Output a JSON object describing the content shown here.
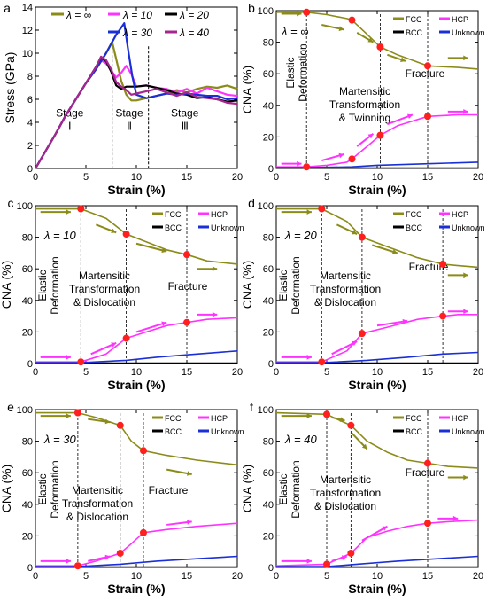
{
  "colors": {
    "fcc": "#8b8b1a",
    "hcp": "#ff33ff",
    "bcc": "#000000",
    "unknown": "#1a2fd6",
    "marker": "#ff1f1f",
    "inf": "#8b8b1a",
    "l10": "#ff33ff",
    "l20": "#000000",
    "l30": "#1a2fd6",
    "l40": "#a5268f"
  },
  "chart_data": [
    {
      "panel": "a",
      "type": "line",
      "xlabel": "Strain (%)",
      "ylabel": "Stress (GPa)",
      "xlim": [
        0,
        20
      ],
      "ylim": [
        0,
        14
      ],
      "xticks": [
        "0",
        "5",
        "10",
        "15",
        "20"
      ],
      "yticks": [
        "0",
        "2",
        "4",
        "6",
        "8",
        "10",
        "12",
        "14"
      ],
      "legend": [
        "λ = ∞",
        "λ = 10",
        "λ = 20",
        "λ = 30",
        "λ = 40"
      ],
      "stages": [
        "Stage\nⅠ",
        "Stage\nⅡ",
        "Stage\nⅢ"
      ],
      "series": [
        {
          "name": "λ = ∞",
          "color": "inf",
          "x": [
            0,
            1,
            2,
            3,
            4,
            5,
            6,
            7,
            7.6,
            8,
            8.5,
            9,
            9.5,
            10,
            11,
            12,
            13,
            14,
            15,
            16,
            17,
            18,
            19,
            20
          ],
          "y": [
            0,
            1.5,
            3,
            4.6,
            6,
            7.4,
            8.6,
            10,
            11,
            9.5,
            7.6,
            6.4,
            5.9,
            5.9,
            6.1,
            6.3,
            6.5,
            6.8,
            6.6,
            6.9,
            7.1,
            7,
            7.2,
            6.9
          ]
        },
        {
          "name": "λ = 10",
          "color": "l10",
          "x": [
            0,
            1,
            2,
            3,
            4,
            5,
            6,
            6.5,
            7,
            7.5,
            8,
            8.5,
            9,
            9.5,
            10,
            11,
            12,
            13,
            14,
            15,
            16,
            17,
            18,
            19,
            20
          ],
          "y": [
            0,
            1.5,
            3,
            4.6,
            6,
            7.4,
            8.8,
            9.4,
            9.1,
            8.5,
            7.9,
            8.3,
            8.9,
            8.2,
            7.1,
            7.2,
            7,
            6.9,
            6.6,
            6.9,
            6.5,
            7,
            6.7,
            6.4,
            6.3
          ]
        },
        {
          "name": "λ = 20",
          "color": "l20",
          "x": [
            0,
            1,
            2,
            3,
            4,
            5,
            6,
            6.5,
            7,
            7.5,
            8,
            8.5,
            9,
            10,
            11,
            12,
            13,
            14,
            15,
            16,
            17,
            18,
            19,
            20
          ],
          "y": [
            0,
            1.5,
            3,
            4.6,
            6,
            7.4,
            8.8,
            9.6,
            9.3,
            8.4,
            7.2,
            6.9,
            7.1,
            7.1,
            7.2,
            7,
            6.8,
            6.5,
            6.4,
            6.1,
            6.2,
            6,
            5.8,
            5.9
          ]
        },
        {
          "name": "λ = 30",
          "color": "l30",
          "x": [
            0,
            1,
            2,
            3,
            4,
            5,
            6,
            7,
            8,
            8.8,
            9.2,
            9.6,
            10,
            11,
            12,
            13,
            14,
            15,
            16,
            17,
            18,
            19,
            20
          ],
          "y": [
            0,
            1.5,
            3,
            4.6,
            6,
            7.4,
            8.6,
            10,
            11.6,
            12.6,
            10.2,
            8,
            6.4,
            6.1,
            6.3,
            6.5,
            6.4,
            6.5,
            6.4,
            6.3,
            6.3,
            6,
            6.1
          ]
        },
        {
          "name": "λ = 40",
          "color": "l40",
          "x": [
            0,
            1,
            2,
            3,
            4,
            5,
            6,
            6.5,
            7,
            7.5,
            8,
            8.5,
            9,
            9.5,
            10,
            11,
            12,
            13,
            14,
            15,
            16,
            17,
            18,
            19,
            20
          ],
          "y": [
            0,
            1.5,
            3,
            4.6,
            6,
            7.4,
            8.8,
            9.7,
            9.4,
            8.6,
            7.5,
            7.1,
            6.8,
            6.4,
            6.5,
            6.7,
            6.9,
            6.6,
            6.3,
            6.6,
            6.2,
            6.1,
            6,
            5.7,
            5.6
          ]
        }
      ]
    },
    {
      "panel": "b",
      "type": "line",
      "xlabel": "Strain (%)",
      "ylabel": "CNA (%)",
      "xlim": [
        0,
        20
      ],
      "ylim": [
        0,
        100
      ],
      "xticks": [
        "0",
        "5",
        "10",
        "15",
        "20"
      ],
      "yticks": [
        "0",
        "20",
        "40",
        "60",
        "80",
        "100"
      ],
      "legend": [
        "FCC",
        "HCP",
        "BCC",
        "Unknown"
      ],
      "lambda": "λ = ∞",
      "annotations": [
        "Elastic\nDeformation",
        "Martensitic\nTransformation\n& Twinning",
        "Fracture"
      ],
      "series": [
        {
          "name": "FCC",
          "color": "fcc",
          "x": [
            0,
            3,
            5,
            7,
            7.5,
            9,
            10.3,
            12,
            15,
            18,
            20
          ],
          "y": [
            99,
            99,
            97.5,
            95,
            94,
            85,
            77,
            72,
            65,
            64,
            63
          ]
        },
        {
          "name": "HCP",
          "color": "hcp",
          "x": [
            0,
            3,
            5,
            7,
            7.5,
            9,
            10.3,
            12,
            15,
            18,
            20
          ],
          "y": [
            1,
            1,
            2,
            4,
            6,
            14,
            21,
            27,
            33,
            34,
            34
          ]
        },
        {
          "name": "BCC",
          "color": "bcc",
          "x": [
            0,
            20
          ],
          "y": [
            0.2,
            0.2
          ]
        },
        {
          "name": "Unknown",
          "color": "unknown",
          "x": [
            0,
            3,
            7.5,
            10,
            15,
            20
          ],
          "y": [
            0.5,
            0.5,
            1,
            2,
            3,
            4
          ]
        }
      ],
      "markers": [
        [
          3,
          99
        ],
        [
          3,
          1
        ],
        [
          7.5,
          94
        ],
        [
          7.5,
          6
        ],
        [
          10.3,
          77
        ],
        [
          10.3,
          21
        ],
        [
          15,
          65
        ],
        [
          15,
          33
        ]
      ]
    },
    {
      "panel": "c",
      "type": "line",
      "xlabel": "Strain (%)",
      "ylabel": "CNA (%)",
      "xlim": [
        0,
        20
      ],
      "ylim": [
        0,
        100
      ],
      "xticks": [
        "0",
        "5",
        "10",
        "15",
        "20"
      ],
      "yticks": [
        "0",
        "20",
        "40",
        "60",
        "80",
        "100"
      ],
      "legend": [
        "FCC",
        "HCP",
        "BCC",
        "Unknown"
      ],
      "lambda": "λ = 10",
      "annotations": [
        "Elastic\nDeformation",
        "Martensitic\nTransformation\n& Dislocation",
        "Fracture"
      ],
      "series": [
        {
          "name": "FCC",
          "color": "fcc",
          "x": [
            0,
            4.5,
            7,
            9,
            11,
            13,
            15,
            17,
            20
          ],
          "y": [
            98,
            98,
            92,
            82,
            77,
            72,
            69,
            65,
            63
          ]
        },
        {
          "name": "HCP",
          "color": "hcp",
          "x": [
            0,
            4.5,
            7,
            9,
            11,
            13,
            15,
            17,
            20
          ],
          "y": [
            1,
            1,
            6,
            16,
            20,
            24,
            26,
            28,
            29
          ]
        },
        {
          "name": "BCC",
          "color": "bcc",
          "x": [
            0,
            20
          ],
          "y": [
            0.2,
            0.2
          ]
        },
        {
          "name": "Unknown",
          "color": "unknown",
          "x": [
            0,
            4.5,
            9,
            12,
            15,
            20
          ],
          "y": [
            0.5,
            0.5,
            2,
            4,
            5.5,
            8
          ]
        }
      ],
      "markers": [
        [
          4.5,
          98
        ],
        [
          4.5,
          1
        ],
        [
          9,
          82
        ],
        [
          9,
          16
        ],
        [
          15,
          69
        ],
        [
          15,
          26
        ]
      ]
    },
    {
      "panel": "d",
      "type": "line",
      "xlabel": "Strain (%)",
      "ylabel": "CNA (%)",
      "xlim": [
        0,
        20
      ],
      "ylim": [
        0,
        100
      ],
      "xticks": [
        "0",
        "5",
        "10",
        "15",
        "20"
      ],
      "yticks": [
        "0",
        "20",
        "40",
        "60",
        "80",
        "100"
      ],
      "legend": [
        "FCC",
        "HCP",
        "BCC",
        "Unknown"
      ],
      "lambda": "λ = 20",
      "annotations": [
        "Elastic\nDeformation",
        "Martensitic\nTransformation\n& Dislocation",
        "Fracture"
      ],
      "series": [
        {
          "name": "FCC",
          "color": "fcc",
          "x": [
            0,
            4.5,
            7,
            8.5,
            11,
            14,
            16.5,
            18,
            20
          ],
          "y": [
            98,
            98,
            90,
            80,
            74,
            67,
            63,
            62,
            61
          ]
        },
        {
          "name": "HCP",
          "color": "hcp",
          "x": [
            0,
            4.5,
            7,
            8.5,
            11,
            14,
            16.5,
            18,
            20
          ],
          "y": [
            1,
            1,
            8,
            19,
            23,
            28,
            30,
            31,
            31
          ]
        },
        {
          "name": "BCC",
          "color": "bcc",
          "x": [
            0,
            20
          ],
          "y": [
            0.2,
            0.2
          ]
        },
        {
          "name": "Unknown",
          "color": "unknown",
          "x": [
            0,
            4.5,
            9,
            13,
            16.5,
            20
          ],
          "y": [
            0.5,
            0.5,
            2,
            4,
            6,
            7
          ]
        }
      ],
      "markers": [
        [
          4.5,
          98
        ],
        [
          4.5,
          1
        ],
        [
          8.5,
          80
        ],
        [
          8.5,
          19
        ],
        [
          16.5,
          63
        ],
        [
          16.5,
          30
        ]
      ]
    },
    {
      "panel": "e",
      "type": "line",
      "xlabel": "Strain (%)",
      "ylabel": "CNA (%)",
      "xlim": [
        0,
        20
      ],
      "ylim": [
        0,
        100
      ],
      "xticks": [
        "0",
        "5",
        "10",
        "15",
        "20"
      ],
      "yticks": [
        "0",
        "20",
        "40",
        "60",
        "80",
        "100"
      ],
      "legend": [
        "FCC",
        "HCP",
        "BCC",
        "Unknown"
      ],
      "lambda": "λ = 30",
      "annotations": [
        "Elastic\nDeformation",
        "Martensitic\nTransformation\n& Dislocation",
        "Fracture"
      ],
      "series": [
        {
          "name": "FCC",
          "color": "fcc",
          "x": [
            0,
            4.2,
            6,
            8.4,
            9.5,
            10.7,
            13,
            16,
            20
          ],
          "y": [
            98,
            98,
            95,
            90,
            80,
            74,
            71,
            68,
            65
          ]
        },
        {
          "name": "HCP",
          "color": "hcp",
          "x": [
            0,
            4.2,
            6,
            8.4,
            9.5,
            10.7,
            13,
            16,
            20
          ],
          "y": [
            1,
            1,
            4,
            9,
            15,
            22,
            24,
            26,
            28
          ]
        },
        {
          "name": "BCC",
          "color": "bcc",
          "x": [
            0,
            20
          ],
          "y": [
            0.2,
            0.2
          ]
        },
        {
          "name": "Unknown",
          "color": "unknown",
          "x": [
            0,
            4.2,
            8.4,
            12,
            16,
            20
          ],
          "y": [
            0.5,
            0.5,
            2,
            4,
            5.5,
            7
          ]
        }
      ],
      "markers": [
        [
          4.2,
          98
        ],
        [
          4.2,
          1
        ],
        [
          8.4,
          90
        ],
        [
          8.4,
          9
        ],
        [
          10.7,
          74
        ],
        [
          10.7,
          22
        ]
      ]
    },
    {
      "panel": "f",
      "type": "line",
      "xlabel": "Strain (%)",
      "ylabel": "CNA (%)",
      "xlim": [
        0,
        20
      ],
      "ylim": [
        0,
        100
      ],
      "xticks": [
        "0",
        "5",
        "10",
        "15",
        "20"
      ],
      "yticks": [
        "0",
        "20",
        "40",
        "60",
        "80",
        "100"
      ],
      "legend": [
        "FCC",
        "HCP",
        "BCC",
        "Unknown"
      ],
      "lambda": "λ = 40",
      "annotations": [
        "Elastic\nDeformation",
        "Martensitic\nTransformation\n& Dislocation",
        "Fracture"
      ],
      "series": [
        {
          "name": "FCC",
          "color": "fcc",
          "x": [
            0,
            5,
            6,
            7.4,
            9,
            11,
            13,
            15,
            17,
            20
          ],
          "y": [
            98,
            97,
            94,
            90,
            80,
            73,
            68,
            66,
            64,
            63
          ]
        },
        {
          "name": "HCP",
          "color": "hcp",
          "x": [
            0,
            5,
            6,
            7.4,
            9,
            11,
            13,
            15,
            17,
            20
          ],
          "y": [
            1,
            2,
            5,
            9,
            19,
            23,
            26,
            28,
            29,
            30
          ]
        },
        {
          "name": "BCC",
          "color": "bcc",
          "x": [
            0,
            20
          ],
          "y": [
            0.2,
            0.2
          ]
        },
        {
          "name": "Unknown",
          "color": "unknown",
          "x": [
            0,
            5,
            8,
            12,
            16,
            20
          ],
          "y": [
            0.5,
            0.5,
            2,
            4,
            5.5,
            7
          ]
        }
      ],
      "markers": [
        [
          5,
          97
        ],
        [
          5,
          2
        ],
        [
          7.4,
          90
        ],
        [
          7.4,
          9
        ],
        [
          15,
          66
        ],
        [
          15,
          28
        ]
      ]
    }
  ]
}
